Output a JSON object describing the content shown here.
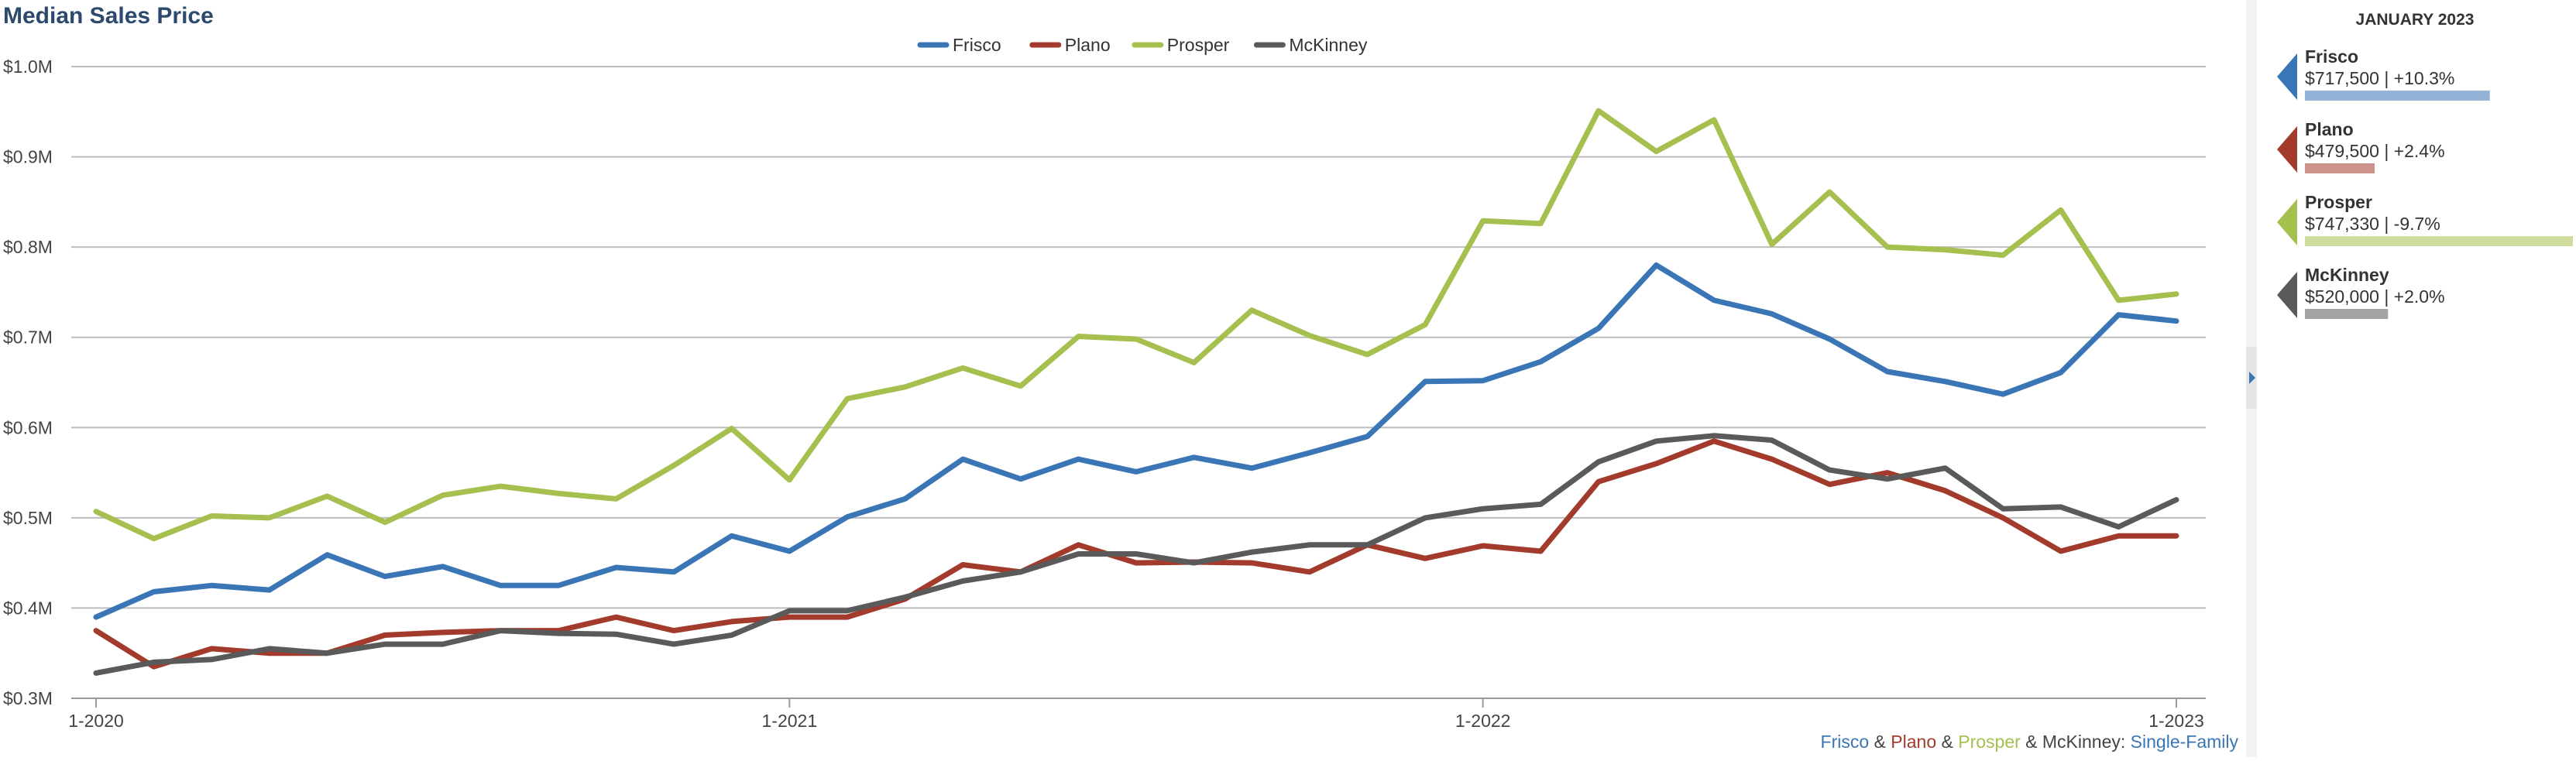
{
  "title": "Median Sales Price",
  "colors": {
    "frisco": "#3a76b6",
    "plano": "#a23b2c",
    "prosper": "#a5c04f",
    "mckinney": "#5a5a5a",
    "title": "#2c4a6e",
    "grid": "#bdbdbd",
    "panel_bg": "#fafafa"
  },
  "legend": [
    {
      "key": "frisco",
      "label": "Frisco"
    },
    {
      "key": "plano",
      "label": "Plano"
    },
    {
      "key": "prosper",
      "label": "Prosper"
    },
    {
      "key": "mckinney",
      "label": "McKinney"
    }
  ],
  "footer": {
    "parts": [
      {
        "text": "Frisco",
        "key": "frisco"
      },
      {
        "text": " & ",
        "key": "text"
      },
      {
        "text": "Plano",
        "key": "plano"
      },
      {
        "text": " & ",
        "key": "text"
      },
      {
        "text": "Prosper",
        "key": "prosper"
      },
      {
        "text": " & McKinney: ",
        "key": "text"
      },
      {
        "text": "Single-Family",
        "key": "frisco"
      }
    ]
  },
  "side_panel": {
    "heading": "JANUARY 2023",
    "toggle_icon": "triangle-right-icon",
    "items": [
      {
        "key": "frisco",
        "name": "Frisco",
        "value": "$717,500 | +10.3%",
        "bar_fraction": 0.69
      },
      {
        "key": "plano",
        "name": "Plano",
        "value": "$479,500 | +2.4%",
        "bar_fraction": 0.26
      },
      {
        "key": "prosper",
        "name": "Prosper",
        "value": "$747,330 | -9.7%",
        "bar_fraction": 1.0
      },
      {
        "key": "mckinney",
        "name": "McKinney",
        "value": "$520,000 | +2.0%",
        "bar_fraction": 0.31
      }
    ]
  },
  "chart_data": {
    "type": "line",
    "title": "Median Sales Price",
    "y_ticks": [
      "$0.3M",
      "$0.4M",
      "$0.5M",
      "$0.6M",
      "$0.7M",
      "$0.8M",
      "$0.9M",
      "$1.0M"
    ],
    "ylim": [
      0.3,
      1.0
    ],
    "x_ticks": [
      {
        "label": "1-2020",
        "index": 0
      },
      {
        "label": "1-2021",
        "index": 12
      },
      {
        "label": "1-2022",
        "index": 24
      },
      {
        "label": "1-2023",
        "index": 36
      }
    ],
    "x_count": 37,
    "grid": true,
    "legend_position": "top",
    "series": [
      {
        "key": "frisco",
        "name": "Frisco",
        "values": [
          0.39,
          0.418,
          0.425,
          0.42,
          0.459,
          0.435,
          0.446,
          0.425,
          0.425,
          0.445,
          0.44,
          0.48,
          0.463,
          0.501,
          0.521,
          0.565,
          0.543,
          0.565,
          0.551,
          0.567,
          0.555,
          0.572,
          0.59,
          0.651,
          0.652,
          0.673,
          0.71,
          0.78,
          0.741,
          0.726,
          0.698,
          0.662,
          0.651,
          0.637,
          0.661,
          0.725,
          0.718
        ]
      },
      {
        "key": "plano",
        "name": "Plano",
        "values": [
          0.375,
          0.335,
          0.355,
          0.35,
          0.35,
          0.37,
          0.373,
          0.375,
          0.375,
          0.39,
          0.375,
          0.385,
          0.39,
          0.39,
          0.41,
          0.448,
          0.44,
          0.47,
          0.45,
          0.451,
          0.45,
          0.44,
          0.47,
          0.455,
          0.469,
          0.463,
          0.54,
          0.56,
          0.585,
          0.565,
          0.537,
          0.55,
          0.53,
          0.5,
          0.463,
          0.48,
          0.48
        ]
      },
      {
        "key": "prosper",
        "name": "Prosper",
        "values": [
          0.507,
          0.477,
          0.502,
          0.5,
          0.524,
          0.495,
          0.525,
          0.535,
          0.527,
          0.521,
          0.558,
          0.599,
          0.542,
          0.632,
          0.645,
          0.666,
          0.646,
          0.701,
          0.698,
          0.672,
          0.73,
          0.702,
          0.681,
          0.714,
          0.829,
          0.826,
          0.951,
          0.906,
          0.941,
          0.803,
          0.861,
          0.8,
          0.797,
          0.791,
          0.841,
          0.741,
          0.748
        ]
      },
      {
        "key": "mckinney",
        "name": "McKinney",
        "values": [
          0.328,
          0.34,
          0.343,
          0.355,
          0.35,
          0.36,
          0.36,
          0.375,
          0.372,
          0.371,
          0.36,
          0.37,
          0.397,
          0.397,
          0.412,
          0.43,
          0.44,
          0.46,
          0.46,
          0.45,
          0.462,
          0.47,
          0.47,
          0.5,
          0.51,
          0.515,
          0.562,
          0.585,
          0.591,
          0.586,
          0.553,
          0.543,
          0.555,
          0.51,
          0.512,
          0.49,
          0.52
        ]
      }
    ]
  }
}
